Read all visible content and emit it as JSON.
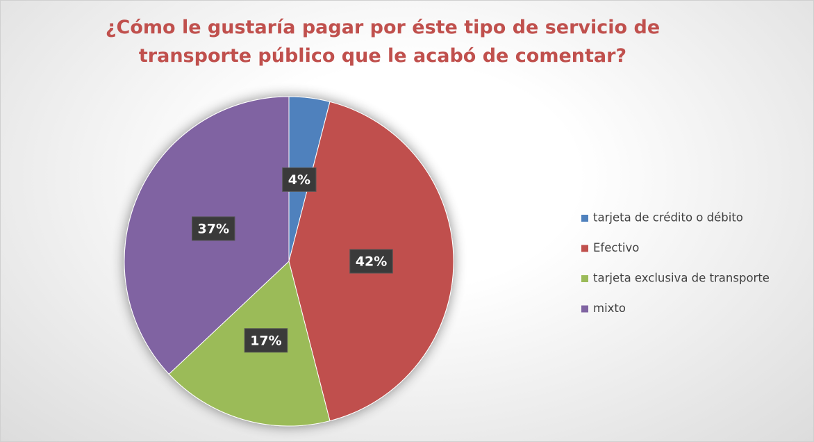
{
  "chart_data": {
    "type": "pie",
    "title": "¿Cómo le gustaría pagar por éste tipo de servicio de transporte público que le acabó de comentar?",
    "categories": [
      "tarjeta de crédito o débito",
      "Efectivo",
      "tarjeta exclusiva de transporte",
      "mixto"
    ],
    "values": [
      4,
      42,
      17,
      37
    ],
    "value_labels": [
      "4%",
      "42%",
      "17%",
      "37%"
    ],
    "colors": [
      "#4f81bd",
      "#c0504d",
      "#9bbb59",
      "#8064a2"
    ],
    "legend": "right"
  }
}
